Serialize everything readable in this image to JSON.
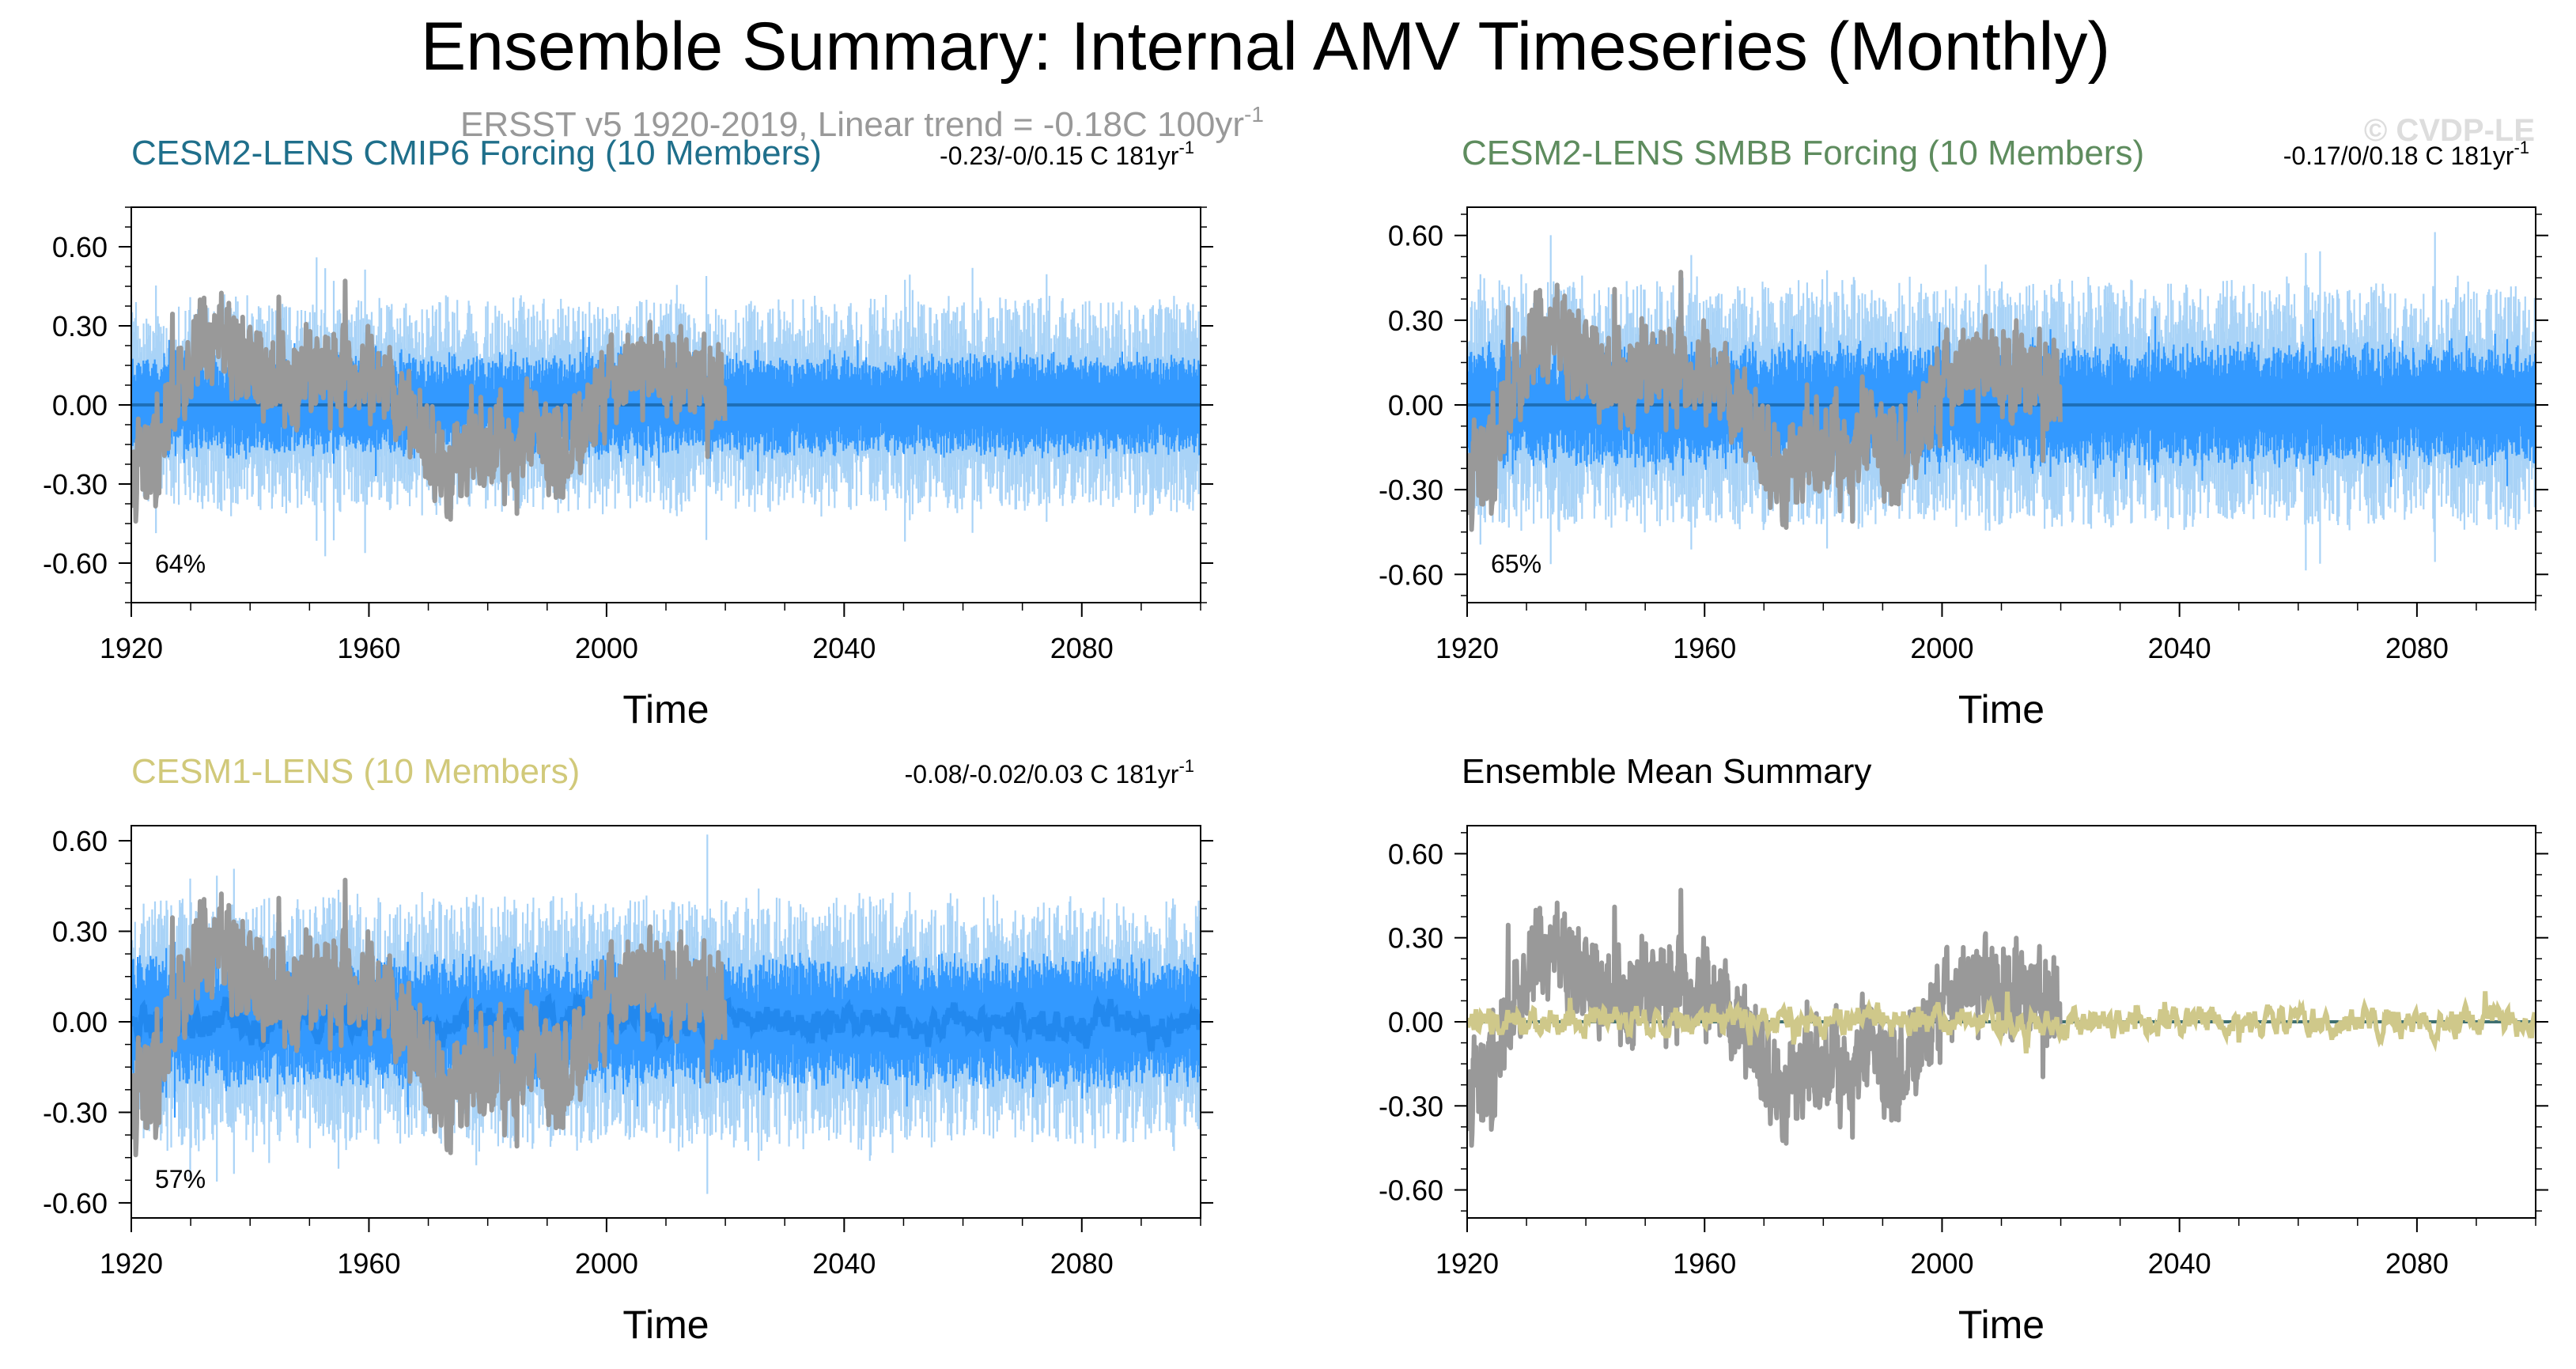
{
  "figure": {
    "title": "Ensemble Summary: Internal AMV Timeseries (Monthly)",
    "subtitle": "ERSST v5 1920-2019, Linear trend = -0.18C 100yr",
    "subtitle_sup": "-1",
    "watermark": "© CVDP-LE"
  },
  "colors": {
    "obs": "#999999",
    "cesm2_cmip6_title": "#1F6F8B",
    "cesm2_smbb_title": "#5E8C5E",
    "cesm1_title": "#D1C97A",
    "spread_light": "#A9D3F7",
    "spread_dark": "#3399FF",
    "member_line": "#2288EE",
    "mean_line": "#1E6FB8",
    "ens_mean_line": "#CFC88A"
  },
  "chart_data": [
    {
      "id": "cesm2-cmip6",
      "type": "line",
      "title": "CESM2-LENS CMIP6 Forcing (10 Members)",
      "trend_label": "-0.23/-0/0.15 C 181yr",
      "trend_sup": "-1",
      "percent_label": "64%",
      "xlabel": "Time",
      "ylabel": "",
      "xlim": [
        1920,
        2100
      ],
      "ylim": [
        -0.75,
        0.75
      ],
      "xticks": [
        1920,
        1960,
        2000,
        2040,
        2080
      ],
      "yticks": [
        -0.6,
        -0.3,
        0.0,
        0.3,
        0.6
      ],
      "ytick_labels": [
        "-0.60",
        "-0.30",
        "0.00",
        "0.30",
        "0.60"
      ],
      "series": [
        {
          "name": "ensemble spread (min/max)",
          "kind": "band_light",
          "half_width": 0.33,
          "x_range": [
            1920,
            2100
          ]
        },
        {
          "name": "ensemble spread (10th-90th)",
          "kind": "band_dark",
          "half_width": 0.15,
          "x_range": [
            1920,
            2100
          ]
        },
        {
          "name": "ensemble mean",
          "kind": "mean",
          "amplitude": 0.0,
          "x_range": [
            1920,
            2100
          ]
        },
        {
          "name": "ERSST v5 observations",
          "kind": "obs",
          "x_range": [
            1920,
            2019
          ]
        }
      ]
    },
    {
      "id": "cesm2-smbb",
      "type": "line",
      "title": "CESM2-LENS SMBB Forcing (10 Members)",
      "trend_label": "-0.17/0/0.18 C 181yr",
      "trend_sup": "-1",
      "percent_label": "65%",
      "xlabel": "Time",
      "ylabel": "",
      "xlim": [
        1920,
        2100
      ],
      "ylim": [
        -0.7,
        0.7
      ],
      "xticks": [
        1920,
        1960,
        2000,
        2040,
        2080
      ],
      "yticks": [
        -0.6,
        -0.3,
        0.0,
        0.3,
        0.6
      ],
      "ytick_labels": [
        "-0.60",
        "-0.30",
        "0.00",
        "0.30",
        "0.60"
      ],
      "series": [
        {
          "name": "ensemble spread (min/max)",
          "kind": "band_light",
          "half_width": 0.36,
          "x_range": [
            1920,
            2100
          ]
        },
        {
          "name": "ensemble spread (10th-90th)",
          "kind": "band_dark",
          "half_width": 0.17,
          "x_range": [
            1920,
            2100
          ]
        },
        {
          "name": "ensemble mean",
          "kind": "mean",
          "amplitude": 0.0,
          "x_range": [
            1920,
            2100
          ]
        },
        {
          "name": "ERSST v5 observations",
          "kind": "obs",
          "x_range": [
            1920,
            2019
          ]
        }
      ]
    },
    {
      "id": "cesm1",
      "type": "line",
      "title": "CESM1-LENS (10 Members)",
      "trend_label": "-0.08/-0.02/0.03 C 181yr",
      "trend_sup": "-1",
      "percent_label": "57%",
      "xlabel": "Time",
      "ylabel": "",
      "xlim": [
        1920,
        2100
      ],
      "ylim": [
        -0.65,
        0.65
      ],
      "xticks": [
        1920,
        1960,
        2000,
        2040,
        2080
      ],
      "yticks": [
        -0.6,
        -0.3,
        0.0,
        0.3,
        0.6
      ],
      "ytick_labels": [
        "-0.60",
        "-0.30",
        "0.00",
        "0.30",
        "0.60"
      ],
      "series": [
        {
          "name": "ensemble spread (min/max)",
          "kind": "band_light",
          "half_width": 0.34,
          "x_range": [
            1920,
            2100
          ]
        },
        {
          "name": "ensemble spread (10th-90th)",
          "kind": "band_dark",
          "half_width": 0.17,
          "x_range": [
            1920,
            2100
          ]
        },
        {
          "name": "ensemble mean",
          "kind": "mean",
          "amplitude": 0.06,
          "x_range": [
            1920,
            2100
          ]
        },
        {
          "name": "ERSST v5 observations",
          "kind": "obs",
          "x_range": [
            1920,
            2019
          ]
        }
      ]
    },
    {
      "id": "ens-mean-summary",
      "type": "line",
      "title": "Ensemble Mean Summary",
      "trend_label": "",
      "trend_sup": "",
      "percent_label": "",
      "xlabel": "Time",
      "ylabel": "",
      "xlim": [
        1920,
        2100
      ],
      "ylim": [
        -0.7,
        0.7
      ],
      "xticks": [
        1920,
        1960,
        2000,
        2040,
        2080
      ],
      "yticks": [
        -0.6,
        -0.3,
        0.0,
        0.3,
        0.6
      ],
      "ytick_labels": [
        "-0.60",
        "-0.30",
        "0.00",
        "0.30",
        "0.60"
      ],
      "series": [
        {
          "name": "CESM2-LENS CMIP6 ensemble mean",
          "kind": "flat_mean",
          "x_range": [
            1920,
            2100
          ]
        },
        {
          "name": "CESM2-LENS SMBB ensemble mean",
          "kind": "flat_mean",
          "x_range": [
            1920,
            2100
          ]
        },
        {
          "name": "ERSST v5 observations",
          "kind": "obs",
          "x_range": [
            1920,
            2019
          ]
        },
        {
          "name": "CESM1-LENS ensemble mean",
          "kind": "ens_mean",
          "amplitude": 0.07,
          "x_range": [
            1920,
            2100
          ]
        }
      ]
    }
  ],
  "obs_anchor_series": {
    "name": "ERSST v5 AMV annual anchor values (approx.)",
    "x": [
      1920,
      1924,
      1928,
      1932,
      1935,
      1938,
      1942,
      1946,
      1950,
      1954,
      1958,
      1962,
      1966,
      1970,
      1973,
      1976,
      1980,
      1984,
      1988,
      1992,
      1996,
      2000,
      2004,
      2008,
      2012,
      2016,
      2019
    ],
    "y": [
      -0.2,
      -0.22,
      0.05,
      0.22,
      0.25,
      0.18,
      0.1,
      0.05,
      0.12,
      0.1,
      0.12,
      0.05,
      -0.02,
      -0.15,
      -0.25,
      -0.2,
      -0.15,
      -0.18,
      -0.05,
      -0.2,
      -0.1,
      0.05,
      0.15,
      0.18,
      0.12,
      0.1,
      0.05
    ]
  }
}
